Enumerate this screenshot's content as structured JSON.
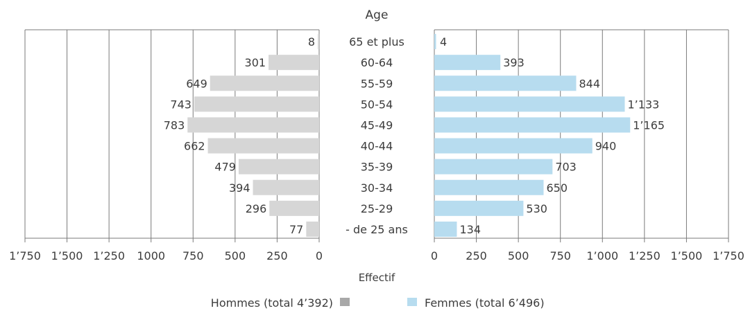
{
  "chart_data": {
    "type": "bar",
    "orientation": "horizontal",
    "layout": "population-pyramid",
    "title": "Age",
    "xlabel": "Effectif",
    "categories": [
      "65 et plus",
      "60-64",
      "55-59",
      "50-54",
      "45-49",
      "40-44",
      "35-39",
      "30-34",
      "25-29",
      "- de 25 ans"
    ],
    "series": [
      {
        "name": "Hommes (total 4’392)",
        "side": "left",
        "color": "#d6d6d6",
        "values": [
          8,
          301,
          649,
          743,
          783,
          662,
          479,
          394,
          296,
          77
        ],
        "value_labels": [
          "8",
          "301",
          "649",
          "743",
          "783",
          "662",
          "479",
          "394",
          "296",
          "77"
        ]
      },
      {
        "name": "Femmes (total 6’496)",
        "side": "right",
        "color": "#b7dcef",
        "values": [
          4,
          393,
          844,
          1133,
          1165,
          940,
          703,
          650,
          530,
          134
        ],
        "value_labels": [
          "4",
          "393",
          "844",
          "1’133",
          "1’165",
          "940",
          "703",
          "650",
          "530",
          "134"
        ]
      }
    ],
    "xlim": [
      0,
      1750
    ],
    "left_ticks": [
      {
        "v": 1750,
        "label": "1’750"
      },
      {
        "v": 1500,
        "label": "1’500"
      },
      {
        "v": 1250,
        "label": "1’250"
      },
      {
        "v": 1000,
        "label": "1000"
      },
      {
        "v": 750,
        "label": "750"
      },
      {
        "v": 500,
        "label": "500"
      },
      {
        "v": 250,
        "label": "250"
      },
      {
        "v": 0,
        "label": "0"
      }
    ],
    "right_ticks": [
      {
        "v": 0,
        "label": "0"
      },
      {
        "v": 250,
        "label": "250"
      },
      {
        "v": 500,
        "label": "500"
      },
      {
        "v": 750,
        "label": "750"
      },
      {
        "v": 1000,
        "label": "1’000"
      },
      {
        "v": 1250,
        "label": "1’250"
      },
      {
        "v": 1500,
        "label": "1’500"
      },
      {
        "v": 1750,
        "label": "1’750"
      }
    ],
    "grid": true,
    "legend_position": "bottom"
  }
}
